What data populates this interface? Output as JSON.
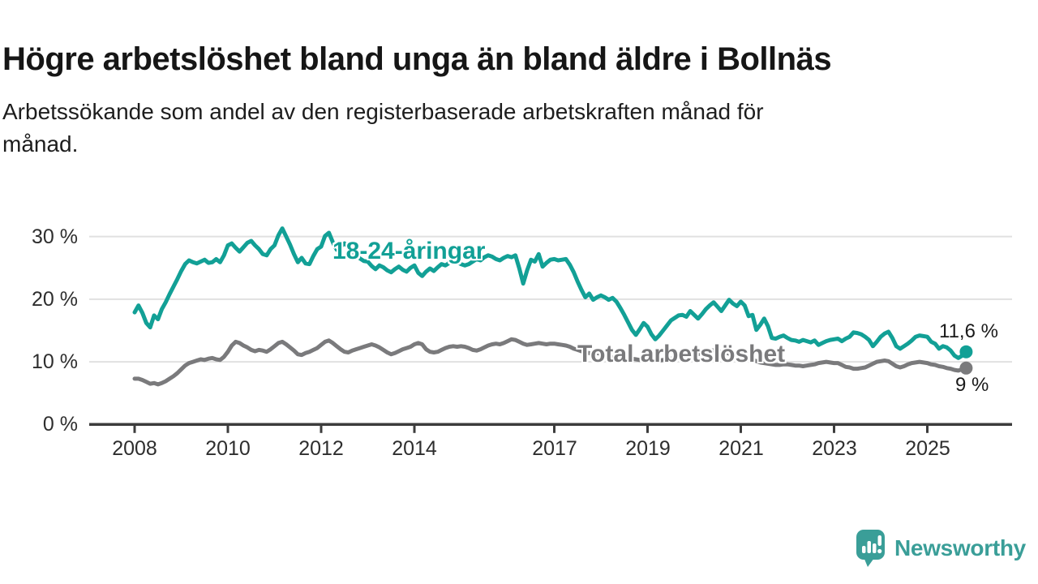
{
  "header": {
    "title": "Högre arbetslöshet bland unga än bland äldre i Bollnäs",
    "subtitle": "Arbetssökande som andel av den registerbaserade arbetskraften månad för månad.",
    "subtitle_lines": [
      "Arbetssökande som andel av den registerbaserade arbetskraften månad för",
      "månad."
    ]
  },
  "chart_data": {
    "type": "line",
    "title": "Högre arbetslöshet bland unga än bland äldre i Bollnäs",
    "x_start": {
      "year": 2008,
      "month": 1
    },
    "x_interval": "monthly",
    "x_tick_years": [
      2008,
      2010,
      2012,
      2014,
      2017,
      2019,
      2021,
      2023,
      2025
    ],
    "y_ticks": [
      {
        "value": 0,
        "label": "0 %"
      },
      {
        "value": 10,
        "label": "10 %"
      },
      {
        "value": 20,
        "label": "20 %"
      },
      {
        "value": 30,
        "label": "30 %"
      }
    ],
    "ylim": [
      0,
      32
    ],
    "grid": "horizontal",
    "colors": {
      "grid": "#e1e1e1",
      "axis": "#3c3c3c"
    },
    "legend_position": "inline-labels",
    "series": [
      {
        "name": "18-24-åringar",
        "label": "18-24-åringar",
        "end_label": "11,6 %",
        "end_value": 11.6,
        "color": "#12a096",
        "values": [
          17.9,
          19.0,
          17.8,
          16.2,
          15.5,
          17.4,
          16.8,
          18.4,
          19.5,
          20.8,
          22.0,
          23.2,
          24.5,
          25.6,
          26.2,
          25.9,
          25.7,
          26.0,
          26.3,
          25.8,
          25.9,
          26.4,
          25.9,
          27.0,
          28.6,
          28.9,
          28.2,
          27.6,
          28.3,
          29.0,
          29.3,
          28.6,
          28.0,
          27.2,
          27.0,
          28.0,
          28.6,
          30.2,
          31.3,
          30.0,
          28.7,
          27.2,
          25.9,
          26.6,
          25.7,
          25.6,
          26.9,
          28.0,
          28.4,
          30.1,
          30.6,
          29.1,
          27.9,
          28.4,
          28.9,
          28.4,
          27.6,
          27.1,
          26.5,
          26.1,
          26.0,
          25.3,
          24.8,
          25.4,
          25.1,
          24.6,
          24.3,
          24.8,
          25.2,
          24.7,
          24.4,
          25.0,
          25.4,
          24.2,
          23.7,
          24.4,
          24.9,
          24.5,
          25.1,
          25.6,
          25.4,
          25.8,
          26.1,
          25.9,
          25.6,
          25.4,
          25.6,
          26.0,
          26.4,
          26.2,
          26.7,
          27.0,
          26.8,
          26.4,
          26.2,
          26.6,
          26.9,
          26.7,
          27.0,
          24.9,
          22.5,
          24.6,
          26.3,
          26.0,
          27.2,
          25.2,
          25.8,
          26.3,
          26.4,
          26.2,
          26.3,
          26.4,
          25.5,
          24.3,
          22.8,
          21.5,
          20.3,
          20.9,
          19.9,
          20.3,
          20.6,
          20.3,
          19.9,
          20.2,
          19.6,
          18.6,
          17.5,
          16.3,
          15.1,
          14.3,
          15.2,
          16.2,
          15.6,
          14.4,
          13.6,
          14.2,
          15.0,
          15.8,
          16.6,
          17.0,
          17.4,
          17.5,
          17.2,
          18.1,
          17.5,
          16.9,
          17.6,
          18.4,
          19.0,
          19.5,
          18.8,
          18.1,
          19.0,
          19.9,
          19.3,
          18.9,
          19.6,
          19.0,
          17.3,
          17.5,
          15.1,
          15.9,
          16.9,
          15.7,
          13.8,
          13.7,
          14.0,
          14.2,
          13.8,
          13.5,
          13.4,
          13.2,
          13.5,
          13.3,
          13.1,
          13.4,
          12.7,
          13.0,
          13.3,
          13.5,
          13.6,
          13.7,
          13.3,
          13.7,
          14.0,
          14.7,
          14.6,
          14.4,
          14.0,
          13.5,
          12.5,
          13.2,
          14.0,
          14.5,
          14.8,
          13.8,
          12.5,
          12.1,
          12.5,
          12.9,
          13.4,
          14.0,
          14.2,
          14.1,
          14.0,
          13.2,
          12.9,
          12.1,
          12.5,
          12.3,
          11.8,
          11.0,
          10.6,
          11.0,
          11.6
        ]
      },
      {
        "name": "Total arbetslöshet",
        "label": "Total arbetslöshet",
        "end_label": "9 %",
        "end_value": 9.0,
        "color": "#7a7a7c",
        "values": [
          7.3,
          7.3,
          7.1,
          6.8,
          6.5,
          6.6,
          6.4,
          6.6,
          6.9,
          7.3,
          7.7,
          8.2,
          8.8,
          9.4,
          9.8,
          10.0,
          10.2,
          10.4,
          10.3,
          10.5,
          10.6,
          10.4,
          10.3,
          10.8,
          11.6,
          12.6,
          13.2,
          13.0,
          12.6,
          12.3,
          11.9,
          11.7,
          11.9,
          11.8,
          11.6,
          12.0,
          12.5,
          13.0,
          13.2,
          12.8,
          12.3,
          11.8,
          11.2,
          11.1,
          11.4,
          11.6,
          11.9,
          12.2,
          12.7,
          13.2,
          13.4,
          13.0,
          12.5,
          12.0,
          11.6,
          11.5,
          11.8,
          12.0,
          12.2,
          12.4,
          12.6,
          12.8,
          12.6,
          12.3,
          11.9,
          11.5,
          11.2,
          11.4,
          11.7,
          12.0,
          12.2,
          12.4,
          12.8,
          13.0,
          12.8,
          12.0,
          11.6,
          11.5,
          11.6,
          11.9,
          12.2,
          12.4,
          12.5,
          12.4,
          12.5,
          12.4,
          12.2,
          11.9,
          11.8,
          12.0,
          12.3,
          12.6,
          12.8,
          12.9,
          12.8,
          13.0,
          13.3,
          13.6,
          13.5,
          13.2,
          12.9,
          12.7,
          12.8,
          12.9,
          13.0,
          12.9,
          12.8,
          12.9,
          12.9,
          12.8,
          12.7,
          12.6,
          12.4,
          12.1,
          11.9,
          11.7,
          11.5,
          11.4,
          11.3,
          11.4,
          11.3,
          11.1,
          10.9,
          10.7,
          10.5,
          10.4,
          10.3,
          10.4,
          10.5,
          10.4,
          10.3,
          10.4,
          10.4,
          10.3,
          10.2,
          10.2,
          10.3,
          10.4,
          10.5,
          10.5,
          10.6,
          10.6,
          10.7,
          10.9,
          11.0,
          11.2,
          11.5,
          11.8,
          11.9,
          11.8,
          11.7,
          11.6,
          11.5,
          11.3,
          11.2,
          11.1,
          10.9,
          10.7,
          10.5,
          10.3,
          10.1,
          9.9,
          9.8,
          9.7,
          9.6,
          9.5,
          9.5,
          9.6,
          9.6,
          9.5,
          9.4,
          9.4,
          9.3,
          9.4,
          9.5,
          9.6,
          9.8,
          9.9,
          10.0,
          9.9,
          9.8,
          9.8,
          9.5,
          9.2,
          9.1,
          8.9,
          8.9,
          9.0,
          9.1,
          9.4,
          9.7,
          10.0,
          10.1,
          10.2,
          10.1,
          9.7,
          9.3,
          9.1,
          9.3,
          9.6,
          9.8,
          9.9,
          10.0,
          9.9,
          9.8,
          9.6,
          9.5,
          9.3,
          9.2,
          9.0,
          8.9,
          8.7,
          8.6,
          8.8,
          9.0
        ]
      }
    ]
  },
  "footer": {
    "brand": "Newsworthy",
    "brand_color": "#3a9e98"
  }
}
